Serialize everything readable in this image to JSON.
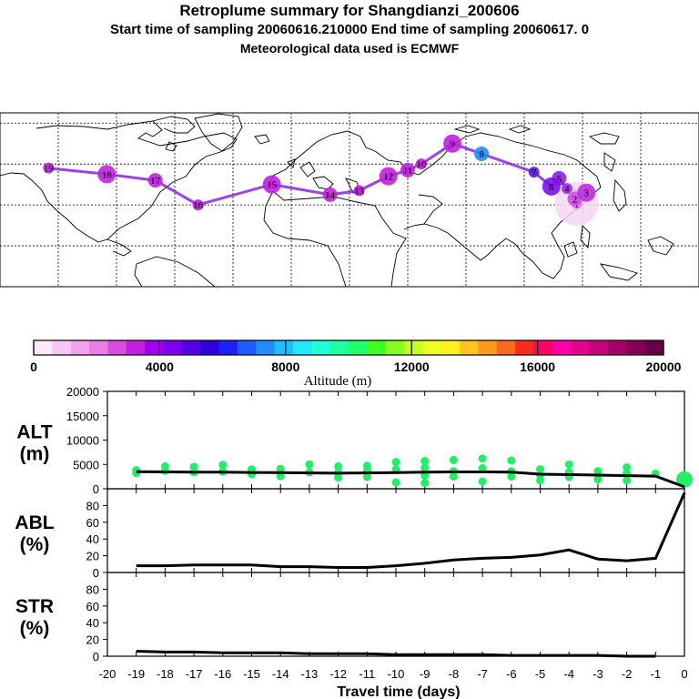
{
  "header": {
    "title": "Retroplume summary for Shangdianzi_200606",
    "line2": "Start time of sampling 20060616.210000     End time of sampling 20060617.     0",
    "line3": "Meteorological data used is ECMWF"
  },
  "chart_data": [
    {
      "type": "map",
      "name": "retroplume-map",
      "description_markers": "plume centroid markers labelled with travel day",
      "markers": [
        {
          "label": "1",
          "lon": 117,
          "lat": 40.6
        },
        {
          "label": "2",
          "lon": 116,
          "lat": 43
        },
        {
          "label": "3",
          "lon": 122,
          "lat": 46
        },
        {
          "label": "4",
          "lon": 112,
          "lat": 48
        },
        {
          "label": "5",
          "lon": 108,
          "lat": 53
        },
        {
          "label": "6",
          "lon": 104,
          "lat": 49
        },
        {
          "label": "7",
          "lon": 95,
          "lat": 56
        },
        {
          "label": "8",
          "lon": 68,
          "lat": 65
        },
        {
          "label": "9",
          "lon": 53,
          "lat": 70
        },
        {
          "label": "10",
          "lon": 37,
          "lat": 60
        },
        {
          "label": "11",
          "lon": 30,
          "lat": 57
        },
        {
          "label": "12",
          "lon": 20,
          "lat": 54
        },
        {
          "label": "13",
          "lon": 5,
          "lat": 47
        },
        {
          "label": "14",
          "lon": -10,
          "lat": 45
        },
        {
          "label": "15",
          "lon": -40,
          "lat": 50
        },
        {
          "label": "16",
          "lon": -78,
          "lat": 40
        },
        {
          "label": "17",
          "lon": -100,
          "lat": 52
        },
        {
          "label": "18",
          "lon": -125,
          "lat": 55
        },
        {
          "label": "19",
          "lon": -155,
          "lat": 58
        }
      ]
    },
    {
      "type": "colorbar",
      "title": "Altitude (m)",
      "ticks": [
        0,
        4000,
        8000,
        12000,
        16000,
        20000
      ],
      "range": [
        0,
        20000
      ],
      "colors": [
        "#fde7fb",
        "#f8c6f5",
        "#f2a2ef",
        "#ea7de8",
        "#dc4be0",
        "#c21fe0",
        "#a100f0",
        "#7d00ee",
        "#5200e6",
        "#2d00de",
        "#1f1ffa",
        "#1f5cff",
        "#1f8cff",
        "#1fbcff",
        "#1fe8ff",
        "#1fffd8",
        "#1fffa4",
        "#1fff6a",
        "#3cff1f",
        "#86ff1f",
        "#c3ff1f",
        "#eeff1f",
        "#fff01f",
        "#ffc41f",
        "#ff9a1f",
        "#ff6a1f",
        "#ff2a1f",
        "#ff0066",
        "#ff00a8",
        "#e8008e",
        "#c8007a",
        "#a40066",
        "#840055",
        "#680046"
      ]
    },
    {
      "type": "line",
      "name": "ALT",
      "ylabel": "ALT",
      "yunit": "(m)",
      "ylim": [
        0,
        20000
      ],
      "yticks": [
        0,
        5000,
        10000,
        15000,
        20000
      ],
      "x": [
        -19,
        -18,
        -17,
        -16,
        -15,
        -14,
        -13,
        -12,
        -11,
        -10,
        -9,
        -8,
        -7,
        -6,
        -5,
        -4,
        -3,
        -2,
        -1,
        0
      ],
      "values": [
        3500,
        3450,
        3400,
        3400,
        3350,
        3300,
        3250,
        3200,
        3250,
        3300,
        3400,
        3450,
        3450,
        3400,
        3000,
        2900,
        2800,
        2700,
        2600,
        400
      ],
      "scatter": {
        "color": "#22ee66",
        "points": [
          [
            -19,
            3800
          ],
          [
            -19,
            3200
          ],
          [
            -18,
            4600
          ],
          [
            -18,
            3700
          ],
          [
            -17,
            4500
          ],
          [
            -17,
            3400
          ],
          [
            -16,
            4900
          ],
          [
            -16,
            3500
          ],
          [
            -15,
            4000
          ],
          [
            -15,
            3000
          ],
          [
            -14,
            4100
          ],
          [
            -14,
            2600
          ],
          [
            -13,
            5000
          ],
          [
            -13,
            3400
          ],
          [
            -12,
            4600
          ],
          [
            -12,
            3300
          ],
          [
            -12,
            2300
          ],
          [
            -11,
            4700
          ],
          [
            -11,
            3600
          ],
          [
            -11,
            2400
          ],
          [
            -10,
            5500
          ],
          [
            -10,
            4000
          ],
          [
            -10,
            1300
          ],
          [
            -9,
            5700
          ],
          [
            -9,
            4300
          ],
          [
            -9,
            2700
          ],
          [
            -9,
            1200
          ],
          [
            -8,
            5900
          ],
          [
            -8,
            3600
          ],
          [
            -8,
            2500
          ],
          [
            -7,
            6200
          ],
          [
            -7,
            4200
          ],
          [
            -7,
            1500
          ],
          [
            -6,
            5800
          ],
          [
            -6,
            3600
          ],
          [
            -6,
            2500
          ],
          [
            -5,
            4000
          ],
          [
            -5,
            2800
          ],
          [
            -5,
            1700
          ],
          [
            -4,
            5000
          ],
          [
            -4,
            3400
          ],
          [
            -4,
            2400
          ],
          [
            -3,
            3600
          ],
          [
            -3,
            1900
          ],
          [
            -2,
            4400
          ],
          [
            -2,
            3200
          ],
          [
            -2,
            1700
          ],
          [
            -1,
            3100
          ],
          [
            0,
            1900
          ]
        ]
      }
    },
    {
      "type": "line",
      "name": "ABL",
      "ylabel": "ABL",
      "yunit": "(%)",
      "ylim": [
        0,
        100
      ],
      "yticks": [
        0,
        20,
        40,
        60,
        80
      ],
      "x": [
        -19,
        -18,
        -17,
        -16,
        -15,
        -14,
        -13,
        -12,
        -11,
        -10,
        -9,
        -8,
        -7,
        -6,
        -5,
        -4,
        -3,
        -2,
        -1,
        0
      ],
      "values": [
        8,
        8,
        9,
        9,
        9,
        7,
        7,
        6,
        6,
        8,
        11,
        15,
        17,
        18,
        21,
        27,
        16,
        14,
        17,
        95
      ]
    },
    {
      "type": "line",
      "name": "STR",
      "ylabel": "STR",
      "yunit": "(%)",
      "ylim": [
        0,
        100
      ],
      "yticks": [
        0,
        20,
        40,
        60,
        80
      ],
      "x": [
        -19,
        -18,
        -17,
        -16,
        -15,
        -14,
        -13,
        -12,
        -11,
        -10,
        -9,
        -8,
        -7,
        -6,
        -5,
        -4,
        -3,
        -2,
        -1
      ],
      "values": [
        6,
        5,
        5,
        4,
        4,
        4,
        3,
        3,
        3,
        2,
        2,
        2,
        2,
        1,
        1,
        1,
        1,
        0,
        0
      ]
    },
    {
      "type": "axis",
      "name": "travel-time",
      "xlabel": "Travel time (days)",
      "xlim": [
        -20,
        0
      ],
      "xticks": [
        -20,
        -19,
        -18,
        -17,
        -16,
        -15,
        -14,
        -13,
        -12,
        -11,
        -10,
        -9,
        -8,
        -7,
        -6,
        -5,
        -4,
        -3,
        -2,
        -1,
        0
      ]
    }
  ]
}
